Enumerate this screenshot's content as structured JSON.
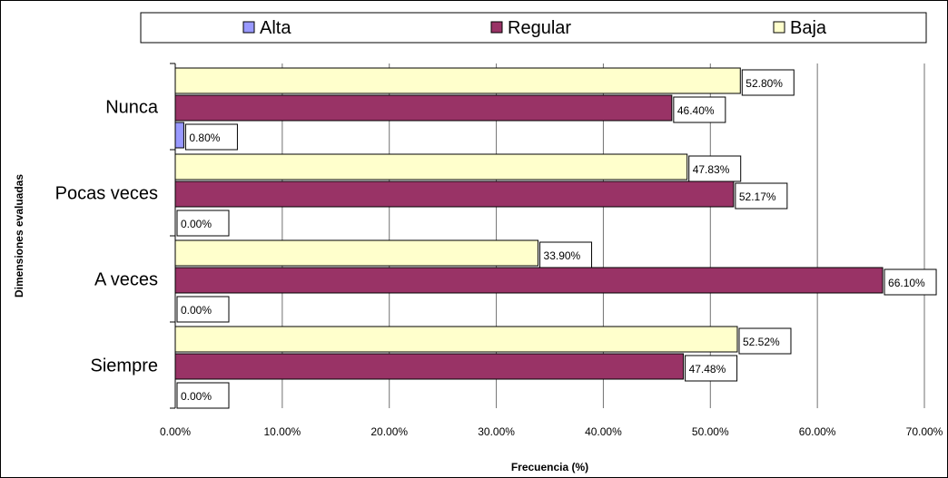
{
  "chart_data": {
    "type": "bar",
    "orientation": "horizontal",
    "title": "",
    "xlabel": "Frecuencia (%)",
    "ylabel": "Dimensiones evaluadas",
    "xlim": [
      0,
      70
    ],
    "x_ticks": [
      "0.00%",
      "10.00%",
      "20.00%",
      "30.00%",
      "40.00%",
      "50.00%",
      "60.00%",
      "70.00%"
    ],
    "categories": [
      "Nunca",
      "Pocas veces",
      "A veces",
      "Siempre"
    ],
    "series": [
      {
        "name": "Alta",
        "color": "#9999ff",
        "values": [
          0.8,
          0.0,
          0.0,
          0.0
        ],
        "labels": [
          "0.80%",
          "0.00%",
          "0.00%",
          "0.00%"
        ]
      },
      {
        "name": "Regular",
        "color": "#993366",
        "values": [
          46.4,
          52.17,
          66.1,
          47.48
        ],
        "labels": [
          "46.40%",
          "52.17%",
          "66.10%",
          "47.48%"
        ]
      },
      {
        "name": "Baja",
        "color": "#ffffcc",
        "values": [
          52.8,
          47.83,
          33.9,
          52.52
        ],
        "labels": [
          "52.80%",
          "47.83%",
          "33.90%",
          "52.52%"
        ]
      }
    ],
    "legend": "top",
    "grid": "vertical"
  }
}
